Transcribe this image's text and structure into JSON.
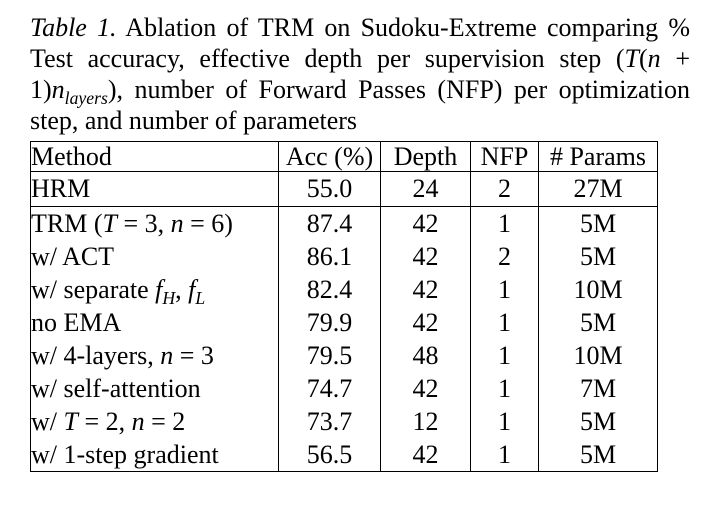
{
  "page": {
    "background_color": "#ffffff",
    "text_color": "#000000"
  },
  "caption": {
    "full_text": "Table 1. Ablation of TRM on Sudoku-Extreme comparing % Test accuracy, effective depth per supervision step (T(n + 1)n_layers), number of Forward Passes (NFP) per optimization step, and number of parameters",
    "segments": [
      {
        "t": "Table 1.",
        "s": "i"
      },
      {
        "t": " Ablation of TRM on Sudoku-Extreme comparing % Test accuracy, effective depth per supervision step (",
        "s": "n"
      },
      {
        "t": "T",
        "s": "i"
      },
      {
        "t": "(",
        "s": "n"
      },
      {
        "t": "n",
        "s": "i"
      },
      {
        "t": " + 1)",
        "s": "n"
      },
      {
        "t": "n",
        "s": "i"
      },
      {
        "t": "layers",
        "s": "sub"
      },
      {
        "t": "), number of Forward Passes (NFP) per optimization step, and number of parameters",
        "s": "n"
      }
    ]
  },
  "table": {
    "headers": [
      "Method",
      "Acc (%)",
      "Depth",
      "NFP",
      "# Params"
    ],
    "rows": [
      {
        "method_text": "HRM",
        "method": [
          {
            "t": "HRM",
            "s": "n"
          }
        ],
        "acc": "55.0",
        "depth": "24",
        "nfp": "2",
        "params": "27M",
        "rule_below": true
      },
      {
        "method_text": "TRM (T = 3, n = 6)",
        "method": [
          {
            "t": "TRM (",
            "s": "n"
          },
          {
            "t": "T",
            "s": "i"
          },
          {
            "t": " = 3, ",
            "s": "n"
          },
          {
            "t": "n",
            "s": "i"
          },
          {
            "t": " = 6)",
            "s": "n"
          }
        ],
        "acc": "87.4",
        "depth": "42",
        "nfp": "1",
        "params": "5M",
        "rule_below": false
      },
      {
        "method_text": "w/ ACT",
        "method": [
          {
            "t": "w/ ACT",
            "s": "n"
          }
        ],
        "acc": "86.1",
        "depth": "42",
        "nfp": "2",
        "params": "5M",
        "rule_below": false
      },
      {
        "method_text": "w/ separate f_H, f_L",
        "method": [
          {
            "t": "w/ separate ",
            "s": "n"
          },
          {
            "t": "f",
            "s": "i"
          },
          {
            "t": "H",
            "s": "sub"
          },
          {
            "t": ", ",
            "s": "n"
          },
          {
            "t": "f",
            "s": "i"
          },
          {
            "t": "L",
            "s": "sub"
          }
        ],
        "acc": "82.4",
        "depth": "42",
        "nfp": "1",
        "params": "10M",
        "rule_below": false
      },
      {
        "method_text": "no EMA",
        "method": [
          {
            "t": "no EMA",
            "s": "n"
          }
        ],
        "acc": "79.9",
        "depth": "42",
        "nfp": "1",
        "params": "5M",
        "rule_below": false
      },
      {
        "method_text": "w/ 4-layers, n = 3",
        "method": [
          {
            "t": "w/ 4-layers, ",
            "s": "n"
          },
          {
            "t": "n",
            "s": "i"
          },
          {
            "t": " = 3",
            "s": "n"
          }
        ],
        "acc": "79.5",
        "depth": "48",
        "nfp": "1",
        "params": "10M",
        "rule_below": false
      },
      {
        "method_text": "w/ self-attention",
        "method": [
          {
            "t": "w/ self-attention",
            "s": "n"
          }
        ],
        "acc": "74.7",
        "depth": "42",
        "nfp": "1",
        "params": "7M",
        "rule_below": false
      },
      {
        "method_text": "w/ T = 2, n = 2",
        "method": [
          {
            "t": "w/ ",
            "s": "n"
          },
          {
            "t": "T",
            "s": "i"
          },
          {
            "t": " = 2, ",
            "s": "n"
          },
          {
            "t": "n",
            "s": "i"
          },
          {
            "t": " = 2",
            "s": "n"
          }
        ],
        "acc": "73.7",
        "depth": "12",
        "nfp": "1",
        "params": "5M",
        "rule_below": false
      },
      {
        "method_text": "w/ 1-step gradient",
        "method": [
          {
            "t": "w/ 1-step gradient",
            "s": "n"
          }
        ],
        "acc": "56.5",
        "depth": "42",
        "nfp": "1",
        "params": "5M",
        "rule_below": false
      }
    ]
  }
}
